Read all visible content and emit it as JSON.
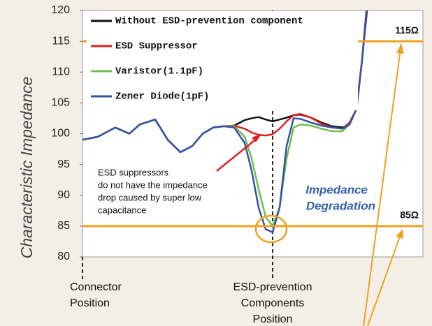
{
  "chart_data": {
    "type": "line",
    "ylabel": "Characteristic Impedance",
    "x": [
      0,
      22,
      47,
      67,
      82,
      104,
      122,
      140,
      157,
      172,
      187,
      202,
      217,
      232,
      242,
      252,
      262,
      272,
      282,
      292,
      302,
      312,
      327,
      342,
      357,
      372,
      382,
      392,
      400,
      407
    ],
    "xlim": [
      0,
      487
    ],
    "ylim": [
      80,
      120
    ],
    "yticks": [
      80,
      85,
      90,
      95,
      100,
      105,
      110,
      115,
      120
    ],
    "grid": false,
    "legend": "upper left",
    "series": [
      {
        "name": "Without ESD-prevention component",
        "color": "#111111",
        "values": [
          99,
          99.5,
          101,
          100,
          101.5,
          102.3,
          99,
          97,
          98,
          100,
          101,
          101.2,
          101.3,
          102.2,
          102.5,
          102.7,
          102.3,
          102,
          102.3,
          102.6,
          103,
          103.1,
          102.6,
          101.8,
          101.2,
          101,
          101.5,
          104,
          112,
          120
        ]
      },
      {
        "name": "ESD Suppressor",
        "color": "#e02020",
        "values": [
          99,
          99.5,
          101,
          100,
          101.5,
          102.3,
          99,
          97,
          98,
          100,
          101,
          101.2,
          101.3,
          100.8,
          100.2,
          99.8,
          99.7,
          99.9,
          100.8,
          102,
          103,
          103.2,
          102.6,
          101.6,
          101,
          100.8,
          101.8,
          104,
          112,
          121
        ]
      },
      {
        "name": "Varistor(1.1pF)",
        "color": "#6cc04a",
        "values": [
          99,
          99.5,
          101,
          100,
          101.5,
          102.3,
          99,
          97,
          98,
          100,
          101,
          101.2,
          101.2,
          99.5,
          96,
          91,
          86.5,
          85,
          88,
          96,
          101,
          101.5,
          101.3,
          100.8,
          100.4,
          100.4,
          101.5,
          104,
          112,
          121
        ]
      },
      {
        "name": "Zener Diode(1pF)",
        "color": "#3552a8",
        "values": [
          99,
          99.5,
          101,
          100,
          101.5,
          102.3,
          99,
          97,
          98,
          100,
          101,
          101.2,
          101,
          98.5,
          94,
          88,
          84.5,
          84,
          88,
          98,
          102.5,
          102.4,
          101.8,
          101.3,
          101,
          100.8,
          101.5,
          104,
          112,
          121
        ]
      }
    ],
    "reference_lines": [
      {
        "value": 115,
        "label": "115Ω",
        "color": "#f0a020"
      },
      {
        "value": 85,
        "label": "85Ω",
        "color": "#f0a020"
      }
    ],
    "markers": [
      {
        "x": 0,
        "label": [
          "Connector",
          "Position"
        ]
      },
      {
        "x": 272,
        "label": [
          "ESD-prevention",
          "Components",
          "Position"
        ]
      }
    ],
    "annotations": [
      {
        "text": [
          "ESD suppressors",
          "do not have the impedance",
          "drop caused by super low",
          "capacitance"
        ]
      },
      {
        "text": [
          "Impedance",
          "Degradation"
        ]
      }
    ]
  }
}
